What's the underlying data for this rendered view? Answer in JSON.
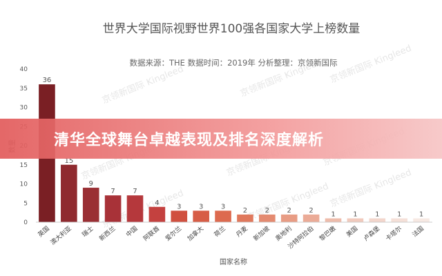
{
  "banner": {
    "text": "清华全球舞台卓越表现及排名深度解析"
  },
  "watermark": {
    "text": "京领新国际 Kingleed"
  },
  "chart_data": {
    "type": "bar",
    "title": "世界大学国际视野世界100强各国家大学上榜数量",
    "subtitle": "数据来源：THE  数据时间：2019年  分析整理：京领新国际",
    "xlabel": "国家名称",
    "ylabel": "数量",
    "ylim": [
      0,
      40
    ],
    "yticks": [
      0,
      5,
      10,
      15,
      20,
      25,
      30,
      35,
      40
    ],
    "grid": false,
    "legend": "none",
    "categories": [
      "英国",
      "澳大利亚",
      "瑞士",
      "新西兰",
      "中国",
      "阿联酋",
      "爱尔兰",
      "加拿大",
      "荷兰",
      "丹麦",
      "新加坡",
      "奥地利",
      "沙特阿拉伯",
      "黎巴嫩",
      "美国",
      "卢森堡",
      "卡塔尔",
      "法国"
    ],
    "values": [
      36,
      15,
      9,
      7,
      7,
      4,
      3,
      3,
      3,
      2,
      2,
      2,
      2,
      1,
      1,
      1,
      1,
      1
    ],
    "colors": [
      "#7a1f24",
      "#8f2a2f",
      "#9a2f34",
      "#a83238",
      "#b5383c",
      "#c4413f",
      "#d0503f",
      "#d75d46",
      "#dd6a4f",
      "#e0785c",
      "#e48a70",
      "#e89c84",
      "#ebab97",
      "#eebcab",
      "#f1cabd",
      "#f3d6cc",
      "#f5e0d8",
      "#f7e9e3"
    ]
  }
}
